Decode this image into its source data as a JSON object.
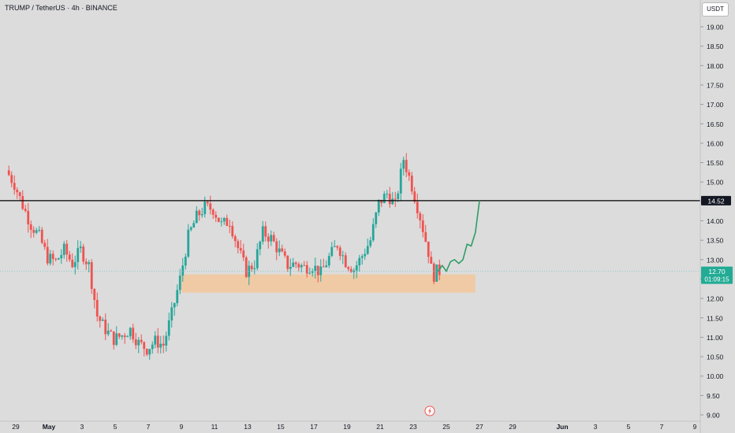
{
  "header": {
    "title": "TRUMP / TetherUS · 4h · BINANCE",
    "unit": "USDT"
  },
  "chart_data": {
    "type": "candlestick",
    "title": "TRUMP / TetherUS · 4h · BINANCE",
    "ylabel": "USDT",
    "ylim": [
      8.9,
      19.4
    ],
    "y_ticks": [
      "9.00",
      "9.50",
      "10.00",
      "10.50",
      "11.00",
      "11.50",
      "12.00",
      "12.50",
      "13.00",
      "13.50",
      "14.00",
      "14.50",
      "15.00",
      "15.50",
      "16.00",
      "16.50",
      "17.00",
      "17.50",
      "18.00",
      "18.50",
      "19.00"
    ],
    "x_ticks": [
      {
        "label": "29",
        "date": "2025-04-29"
      },
      {
        "label": "May",
        "date": "2025-05-01"
      },
      {
        "label": "3",
        "date": "2025-05-03"
      },
      {
        "label": "5",
        "date": "2025-05-05"
      },
      {
        "label": "7",
        "date": "2025-05-07"
      },
      {
        "label": "9",
        "date": "2025-05-09"
      },
      {
        "label": "11",
        "date": "2025-05-11"
      },
      {
        "label": "13",
        "date": "2025-05-13"
      },
      {
        "label": "15",
        "date": "2025-05-15"
      },
      {
        "label": "17",
        "date": "2025-05-17"
      },
      {
        "label": "19",
        "date": "2025-05-19"
      },
      {
        "label": "21",
        "date": "2025-05-21"
      },
      {
        "label": "23",
        "date": "2025-05-23"
      },
      {
        "label": "25",
        "date": "2025-05-25"
      },
      {
        "label": "27",
        "date": "2025-05-27"
      },
      {
        "label": "29",
        "date": "2025-05-29"
      },
      {
        "label": "Jun",
        "date": "2025-06-01"
      },
      {
        "label": "3",
        "date": "2025-06-03"
      },
      {
        "label": "5",
        "date": "2025-06-05"
      },
      {
        "label": "7",
        "date": "2025-06-07"
      },
      {
        "label": "9",
        "date": "2025-06-09"
      }
    ],
    "price_path": [
      [
        "2025-04-28T12:00",
        15.3
      ],
      [
        "2025-04-29T00:00",
        14.95
      ],
      [
        "2025-04-29T12:00",
        14.4
      ],
      [
        "2025-04-30T00:00",
        13.9
      ],
      [
        "2025-04-30T12:00",
        13.6
      ],
      [
        "2025-05-01T00:00",
        13.05
      ],
      [
        "2025-05-01T12:00",
        12.95
      ],
      [
        "2025-05-02T00:00",
        13.25
      ],
      [
        "2025-05-02T12:00",
        12.9
      ],
      [
        "2025-05-03T00:00",
        13.25
      ],
      [
        "2025-05-03T12:00",
        12.85
      ],
      [
        "2025-05-04T00:00",
        11.55
      ],
      [
        "2025-05-04T12:00",
        11.2
      ],
      [
        "2025-05-05T00:00",
        10.95
      ],
      [
        "2025-05-05T12:00",
        11.05
      ],
      [
        "2025-05-06T00:00",
        11.2
      ],
      [
        "2025-05-06T12:00",
        10.85
      ],
      [
        "2025-05-07T00:00",
        10.7
      ],
      [
        "2025-05-07T12:00",
        10.9
      ],
      [
        "2025-05-08T00:00",
        10.8
      ],
      [
        "2025-05-08T12:00",
        11.6
      ],
      [
        "2025-05-09T00:00",
        12.5
      ],
      [
        "2025-05-09T12:00",
        13.6
      ],
      [
        "2025-05-10T00:00",
        14.1
      ],
      [
        "2025-05-10T12:00",
        14.35
      ],
      [
        "2025-05-11T00:00",
        14.3
      ],
      [
        "2025-05-11T12:00",
        13.9
      ],
      [
        "2025-05-12T00:00",
        14.0
      ],
      [
        "2025-05-12T12:00",
        13.3
      ],
      [
        "2025-05-13T00:00",
        12.7
      ],
      [
        "2025-05-13T12:00",
        12.9
      ],
      [
        "2025-05-14T00:00",
        13.7
      ],
      [
        "2025-05-14T12:00",
        13.55
      ],
      [
        "2025-05-15T00:00",
        13.2
      ],
      [
        "2025-05-15T12:00",
        12.85
      ],
      [
        "2025-05-16T00:00",
        12.9
      ],
      [
        "2025-05-16T12:00",
        12.8
      ],
      [
        "2025-05-17T00:00",
        12.85
      ],
      [
        "2025-05-17T12:00",
        12.65
      ],
      [
        "2025-05-18T00:00",
        13.05
      ],
      [
        "2025-05-18T12:00",
        13.4
      ],
      [
        "2025-05-19T00:00",
        12.95
      ],
      [
        "2025-05-19T12:00",
        12.75
      ],
      [
        "2025-05-20T00:00",
        13.1
      ],
      [
        "2025-05-20T12:00",
        13.5
      ],
      [
        "2025-05-21T00:00",
        14.45
      ],
      [
        "2025-05-21T12:00",
        14.7
      ],
      [
        "2025-05-22T00:00",
        14.4
      ],
      [
        "2025-05-22T12:00",
        15.6
      ],
      [
        "2025-05-23T00:00",
        14.9
      ],
      [
        "2025-05-23T12:00",
        14.1
      ],
      [
        "2025-05-24T00:00",
        13.2
      ],
      [
        "2025-05-24T06:00",
        12.55
      ],
      [
        "2025-05-24T12:00",
        12.7
      ]
    ],
    "projection": [
      [
        "2025-05-24T12:00",
        12.7
      ],
      [
        "2025-05-24T18:00",
        12.85
      ],
      [
        "2025-05-25T00:00",
        12.7
      ],
      [
        "2025-05-25T06:00",
        12.95
      ],
      [
        "2025-05-25T12:00",
        13.0
      ],
      [
        "2025-05-25T18:00",
        12.9
      ],
      [
        "2025-05-26T00:00",
        13.0
      ],
      [
        "2025-05-26T06:00",
        13.4
      ],
      [
        "2025-05-26T12:00",
        13.35
      ],
      [
        "2025-05-26T18:00",
        13.7
      ],
      [
        "2025-05-27T00:00",
        14.52
      ]
    ],
    "support_zone": {
      "from": "2025-05-09T00:00",
      "to": "2025-05-26T18:00",
      "low": 12.15,
      "high": 12.62
    },
    "resistance": {
      "value": 14.52,
      "label": "14.52"
    },
    "current_price": {
      "value": 12.7,
      "label": "12.70",
      "countdown": "01:09:15"
    },
    "colors": {
      "up": "#26a69a",
      "down": "#ef5350",
      "resistance": "#000000",
      "zone": "#f2c79a",
      "projection": "#2e9d68",
      "price_badge": "#22ab94",
      "current_line": "#7bc5c0"
    }
  }
}
